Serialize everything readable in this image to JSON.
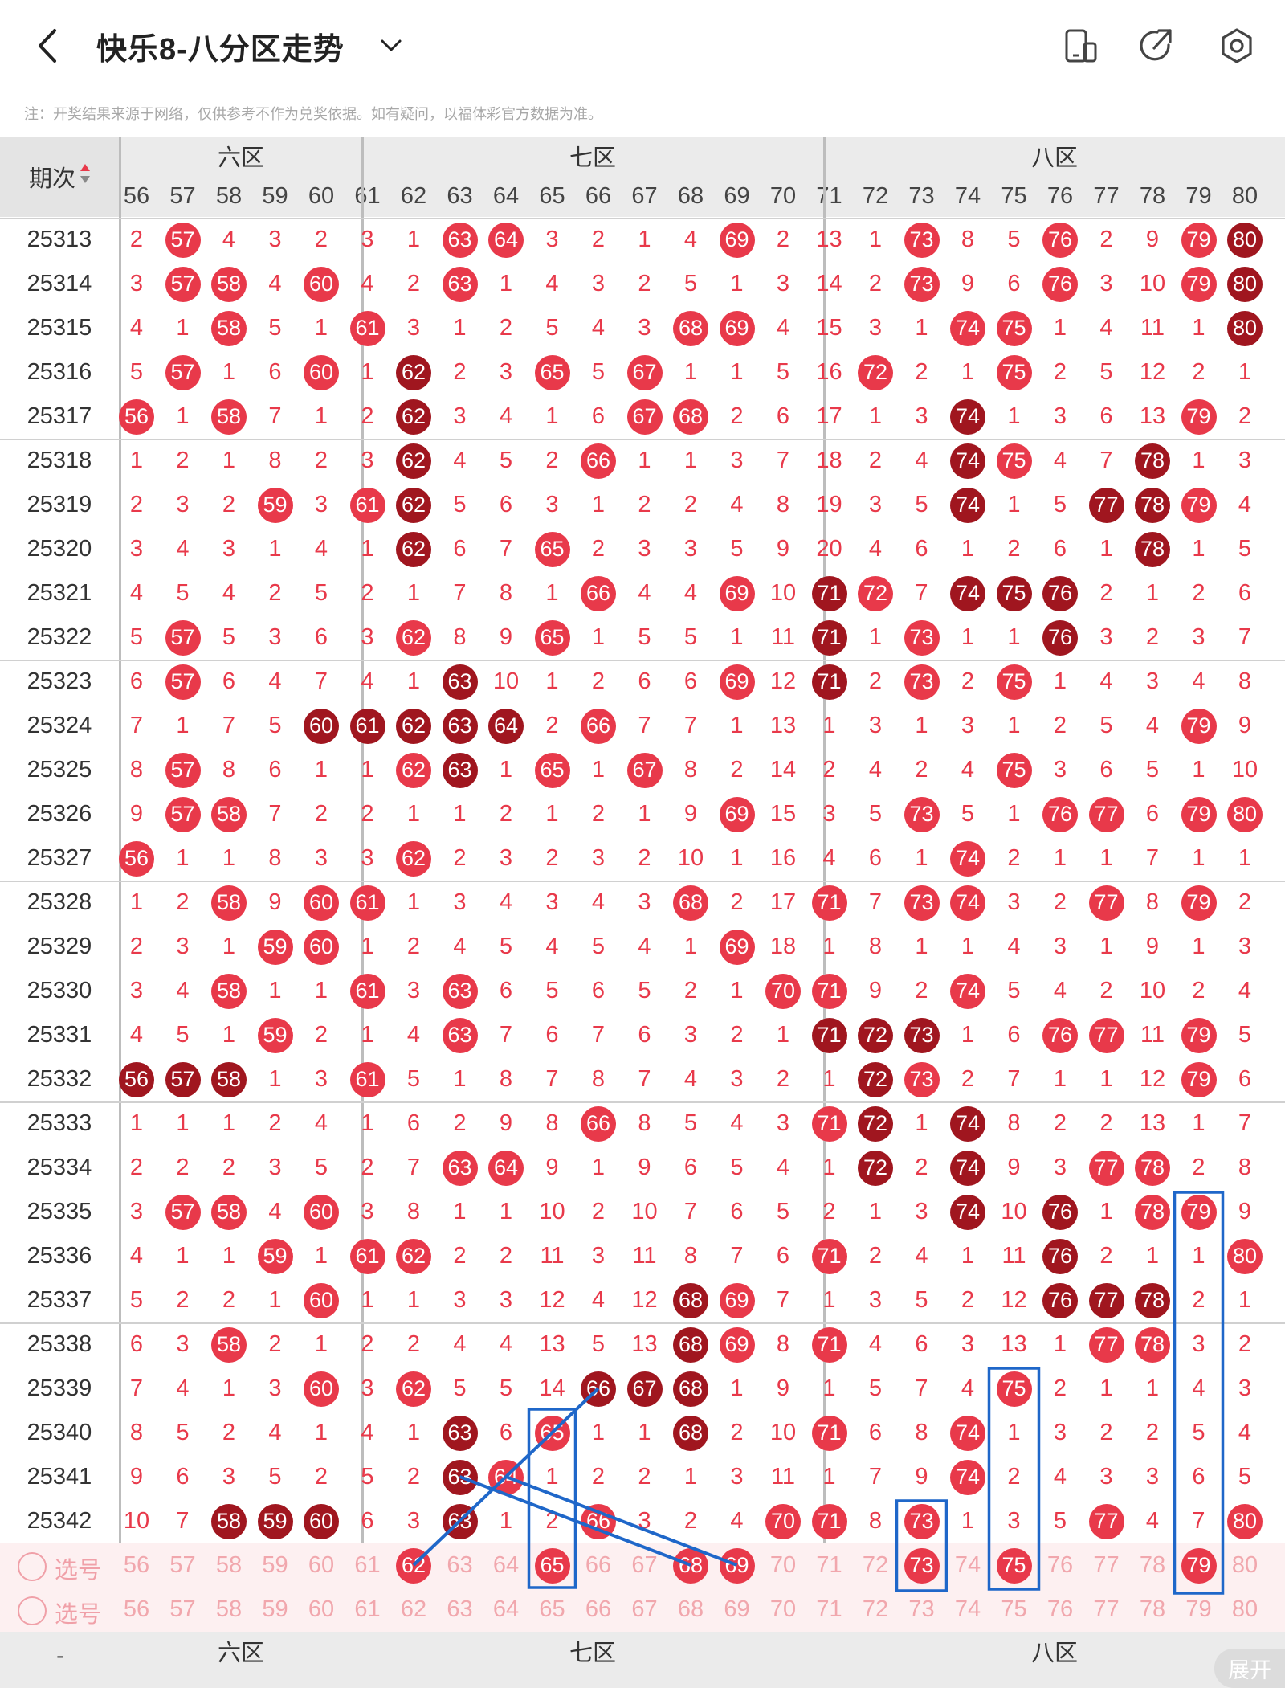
{
  "header": {
    "title": "快乐8-八分区走势",
    "notice": "注：开奖结果来源于网络，仅供参考不作为兑奖依据。如有疑问，以福体彩官方数据为准。",
    "back_icon": "chevron-left-icon",
    "dropdown_icon": "chevron-down-icon",
    "toolbar_icons": [
      "phone-icon",
      "share-icon",
      "settings-icon"
    ]
  },
  "table": {
    "period_header": "期次",
    "zone_labels": [
      "六区",
      "七区",
      "八区"
    ],
    "columns": [
      56,
      57,
      58,
      59,
      60,
      61,
      62,
      63,
      64,
      65,
      66,
      67,
      68,
      69,
      70,
      71,
      72,
      73,
      74,
      75,
      76,
      77,
      78,
      79,
      80
    ],
    "rows": [
      {
        "period": "25313",
        "values": [
          2,
          57,
          4,
          3,
          2,
          3,
          1,
          63,
          64,
          3,
          2,
          1,
          4,
          69,
          2,
          13,
          1,
          73,
          8,
          5,
          76,
          2,
          9,
          79,
          80
        ],
        "dark": [
          80
        ]
      },
      {
        "period": "25314",
        "values": [
          3,
          57,
          58,
          4,
          60,
          4,
          2,
          63,
          1,
          4,
          3,
          2,
          5,
          1,
          3,
          14,
          2,
          73,
          9,
          6,
          76,
          3,
          10,
          79,
          80
        ],
        "dark": [
          80
        ]
      },
      {
        "period": "25315",
        "values": [
          4,
          1,
          58,
          5,
          1,
          61,
          3,
          1,
          2,
          5,
          4,
          3,
          68,
          69,
          4,
          15,
          3,
          1,
          74,
          75,
          1,
          4,
          11,
          1,
          80
        ],
        "dark": [
          80
        ]
      },
      {
        "period": "25316",
        "values": [
          5,
          57,
          1,
          6,
          60,
          1,
          62,
          2,
          3,
          65,
          5,
          67,
          1,
          1,
          5,
          16,
          72,
          2,
          1,
          75,
          2,
          5,
          12,
          2,
          1
        ],
        "dark": [
          62
        ]
      },
      {
        "period": "25317",
        "values": [
          56,
          1,
          58,
          7,
          1,
          2,
          62,
          3,
          4,
          1,
          6,
          67,
          68,
          2,
          6,
          17,
          1,
          3,
          74,
          1,
          3,
          6,
          13,
          79,
          2
        ],
        "dark": [
          62,
          74
        ]
      },
      {
        "period": "25318",
        "values": [
          1,
          2,
          1,
          8,
          2,
          3,
          62,
          4,
          5,
          2,
          66,
          1,
          1,
          3,
          7,
          18,
          2,
          4,
          74,
          75,
          4,
          7,
          78,
          1,
          3
        ],
        "dark": [
          62,
          74,
          78
        ]
      },
      {
        "period": "25319",
        "values": [
          2,
          3,
          2,
          59,
          3,
          61,
          62,
          5,
          6,
          3,
          1,
          2,
          2,
          4,
          8,
          19,
          3,
          5,
          74,
          1,
          5,
          77,
          78,
          79,
          4
        ],
        "dark": [
          62,
          74,
          77,
          78
        ]
      },
      {
        "period": "25320",
        "values": [
          3,
          4,
          3,
          1,
          4,
          1,
          62,
          6,
          7,
          65,
          2,
          3,
          3,
          5,
          9,
          20,
          4,
          6,
          1,
          2,
          6,
          1,
          78,
          1,
          5
        ],
        "dark": [
          62,
          78
        ]
      },
      {
        "period": "25321",
        "values": [
          4,
          5,
          4,
          2,
          5,
          2,
          1,
          7,
          8,
          1,
          66,
          4,
          4,
          69,
          10,
          71,
          72,
          7,
          74,
          75,
          76,
          2,
          1,
          2,
          6
        ],
        "dark": [
          71,
          74,
          75,
          76
        ]
      },
      {
        "period": "25322",
        "values": [
          5,
          57,
          5,
          3,
          6,
          3,
          62,
          8,
          9,
          65,
          1,
          5,
          5,
          1,
          11,
          71,
          1,
          73,
          1,
          1,
          76,
          3,
          2,
          3,
          7
        ],
        "dark": [
          71,
          76
        ]
      },
      {
        "period": "25323",
        "values": [
          6,
          57,
          6,
          4,
          7,
          4,
          1,
          63,
          10,
          1,
          2,
          6,
          6,
          69,
          12,
          71,
          2,
          73,
          2,
          75,
          1,
          4,
          3,
          4,
          8
        ],
        "dark": [
          63,
          71
        ]
      },
      {
        "period": "25324",
        "values": [
          7,
          1,
          7,
          5,
          60,
          61,
          62,
          63,
          64,
          2,
          66,
          7,
          7,
          1,
          13,
          1,
          3,
          1,
          3,
          1,
          2,
          5,
          4,
          79,
          9
        ],
        "dark": [
          60,
          61,
          62,
          63,
          64
        ]
      },
      {
        "period": "25325",
        "values": [
          8,
          57,
          8,
          6,
          1,
          1,
          62,
          63,
          1,
          65,
          1,
          67,
          8,
          2,
          14,
          2,
          4,
          2,
          4,
          75,
          3,
          6,
          5,
          1,
          10
        ],
        "dark": [
          63
        ]
      },
      {
        "period": "25326",
        "values": [
          9,
          57,
          58,
          7,
          2,
          2,
          1,
          1,
          2,
          1,
          2,
          1,
          9,
          69,
          15,
          3,
          5,
          73,
          5,
          1,
          76,
          77,
          6,
          79,
          80
        ],
        "dark": []
      },
      {
        "period": "25327",
        "values": [
          56,
          1,
          1,
          8,
          3,
          3,
          62,
          2,
          3,
          2,
          3,
          2,
          10,
          1,
          16,
          4,
          6,
          1,
          74,
          2,
          1,
          1,
          7,
          1,
          1
        ],
        "dark": []
      },
      {
        "period": "25328",
        "values": [
          1,
          2,
          58,
          9,
          60,
          61,
          1,
          3,
          4,
          3,
          4,
          3,
          68,
          2,
          17,
          71,
          7,
          73,
          74,
          3,
          2,
          77,
          8,
          79,
          2
        ],
        "dark": []
      },
      {
        "period": "25329",
        "values": [
          2,
          3,
          1,
          59,
          60,
          1,
          2,
          4,
          5,
          4,
          5,
          4,
          1,
          69,
          18,
          1,
          8,
          1,
          1,
          4,
          3,
          1,
          9,
          1,
          3
        ],
        "dark": []
      },
      {
        "period": "25330",
        "values": [
          3,
          4,
          58,
          1,
          1,
          61,
          3,
          63,
          6,
          5,
          6,
          5,
          2,
          1,
          70,
          71,
          9,
          2,
          74,
          5,
          4,
          2,
          10,
          2,
          4
        ],
        "dark": []
      },
      {
        "period": "25331",
        "values": [
          4,
          5,
          1,
          59,
          2,
          1,
          4,
          63,
          7,
          6,
          7,
          6,
          3,
          2,
          1,
          71,
          72,
          73,
          1,
          6,
          76,
          77,
          11,
          79,
          5
        ],
        "dark": [
          71,
          72,
          73
        ]
      },
      {
        "period": "25332",
        "values": [
          56,
          57,
          58,
          1,
          3,
          61,
          5,
          1,
          8,
          7,
          8,
          7,
          4,
          3,
          2,
          1,
          72,
          73,
          2,
          7,
          1,
          1,
          12,
          79,
          6
        ],
        "dark": [
          56,
          57,
          58,
          72
        ]
      },
      {
        "period": "25333",
        "values": [
          1,
          1,
          1,
          2,
          4,
          1,
          6,
          2,
          9,
          8,
          66,
          8,
          5,
          4,
          3,
          71,
          72,
          1,
          74,
          8,
          2,
          2,
          13,
          1,
          7
        ],
        "dark": [
          72,
          74
        ]
      },
      {
        "period": "25334",
        "values": [
          2,
          2,
          2,
          3,
          5,
          2,
          7,
          63,
          64,
          9,
          1,
          9,
          6,
          5,
          4,
          1,
          72,
          2,
          74,
          9,
          3,
          77,
          78,
          2,
          8
        ],
        "dark": [
          72,
          74
        ]
      },
      {
        "period": "25335",
        "values": [
          3,
          57,
          58,
          4,
          60,
          3,
          8,
          1,
          1,
          10,
          2,
          10,
          7,
          6,
          5,
          2,
          1,
          3,
          74,
          10,
          76,
          1,
          78,
          79,
          9
        ],
        "dark": [
          74,
          76
        ]
      },
      {
        "period": "25336",
        "values": [
          4,
          1,
          1,
          59,
          1,
          61,
          62,
          2,
          2,
          11,
          3,
          11,
          8,
          7,
          6,
          71,
          2,
          4,
          1,
          11,
          76,
          2,
          1,
          1,
          80
        ],
        "dark": [
          76
        ]
      },
      {
        "period": "25337",
        "values": [
          5,
          2,
          2,
          1,
          60,
          1,
          1,
          3,
          3,
          12,
          4,
          12,
          68,
          69,
          7,
          1,
          3,
          5,
          2,
          12,
          76,
          77,
          78,
          2,
          1
        ],
        "dark": [
          68,
          76,
          77,
          78
        ]
      },
      {
        "period": "25338",
        "values": [
          6,
          3,
          58,
          2,
          1,
          2,
          2,
          4,
          4,
          13,
          5,
          13,
          68,
          69,
          8,
          71,
          4,
          6,
          3,
          13,
          1,
          77,
          78,
          3,
          2
        ],
        "dark": [
          68
        ]
      },
      {
        "period": "25339",
        "values": [
          7,
          4,
          1,
          3,
          60,
          3,
          62,
          5,
          5,
          14,
          66,
          67,
          68,
          1,
          9,
          1,
          5,
          7,
          4,
          75,
          2,
          1,
          1,
          4,
          3
        ],
        "dark": [
          66,
          67,
          68
        ]
      },
      {
        "period": "25340",
        "values": [
          8,
          5,
          2,
          4,
          1,
          4,
          1,
          63,
          6,
          65,
          1,
          1,
          68,
          2,
          10,
          71,
          6,
          8,
          74,
          1,
          3,
          2,
          2,
          5,
          4
        ],
        "dark": [
          63,
          68
        ]
      },
      {
        "period": "25341",
        "values": [
          9,
          6,
          3,
          5,
          2,
          5,
          2,
          63,
          64,
          1,
          2,
          2,
          1,
          3,
          11,
          1,
          7,
          9,
          74,
          2,
          4,
          3,
          3,
          6,
          5
        ],
        "dark": [
          63
        ]
      },
      {
        "period": "25342",
        "values": [
          10,
          7,
          58,
          59,
          60,
          6,
          3,
          63,
          1,
          2,
          66,
          3,
          2,
          4,
          70,
          71,
          8,
          73,
          1,
          3,
          5,
          77,
          4,
          7,
          80
        ],
        "dark": [
          58,
          59,
          60,
          63
        ]
      }
    ],
    "select_rows": [
      {
        "label": "选号",
        "selected": [
          62,
          65,
          68,
          69,
          73,
          75,
          79
        ]
      },
      {
        "label": "选号",
        "selected": []
      }
    ]
  },
  "footer": {
    "expand_label": "展开",
    "left_label": "-"
  }
}
